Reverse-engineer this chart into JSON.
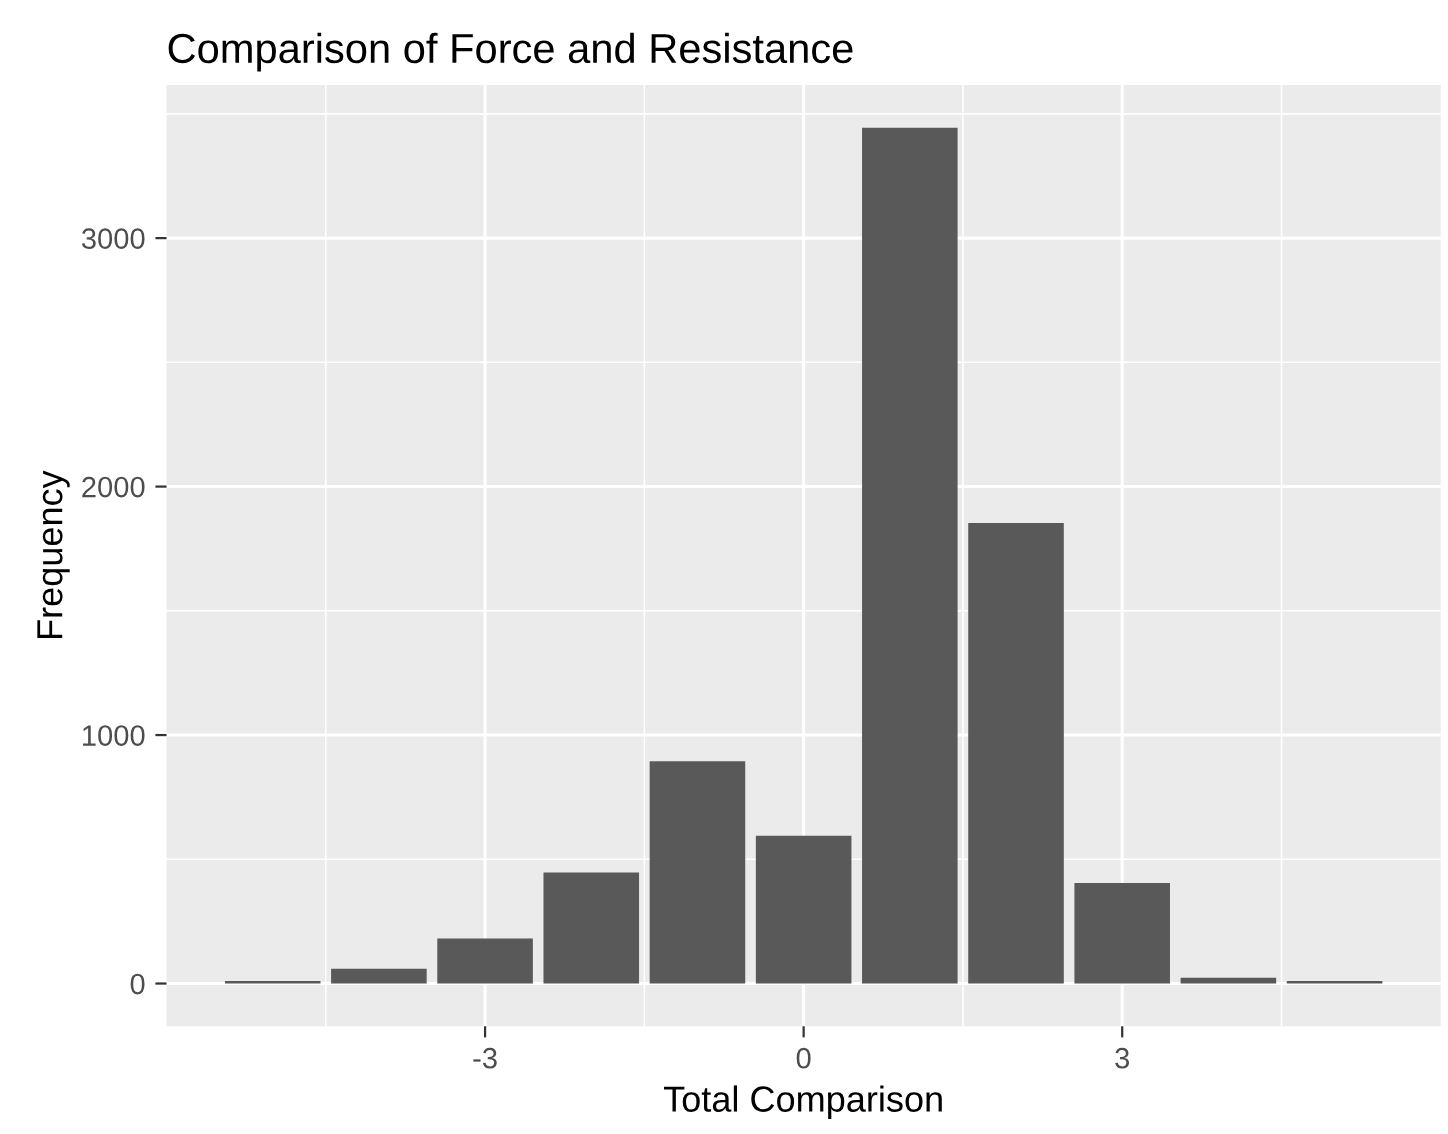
{
  "chart_data": {
    "type": "bar",
    "title": "Comparison of Force and Resistance",
    "xlabel": "Total Comparison",
    "ylabel": "Frequency",
    "x": [
      -5,
      -4,
      -3,
      -2,
      -1,
      0,
      1,
      2,
      3,
      4,
      5
    ],
    "values": [
      10,
      59,
      181,
      447,
      895,
      595,
      3444,
      1853,
      405,
      23,
      10
    ],
    "color": "#595959",
    "xlim": [
      -6,
      6
    ],
    "xticks": [
      -3,
      0,
      3
    ],
    "ylim": [
      -172,
      3616
    ],
    "yticks": [
      0,
      1000,
      2000,
      3000
    ],
    "grid": true
  }
}
